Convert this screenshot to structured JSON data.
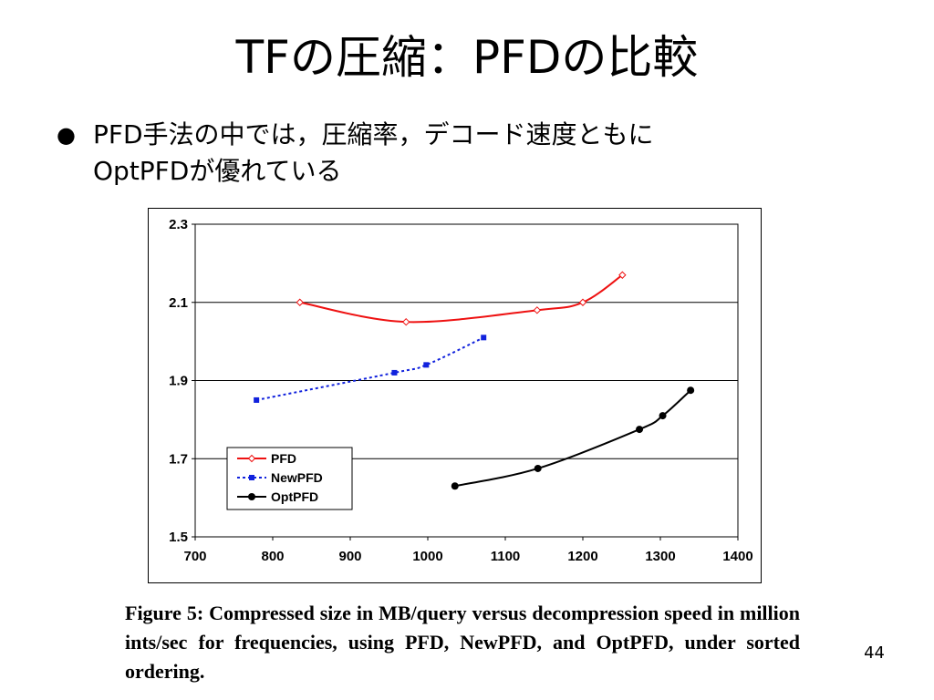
{
  "slide": {
    "title": "TFの圧縮：PFDの比較",
    "bullet_line1": "PFD手法の中では，圧縮率，デコード速度ともに",
    "bullet_line2": "OptPFDが優れている",
    "page_number": "44"
  },
  "caption": {
    "label": "Figure 5:",
    "text": "Compressed size in MB/query versus decompression speed in million ints/sec for frequencies, using PFD, NewPFD, and OptPFD, under sorted ordering."
  },
  "chart_data": {
    "type": "line",
    "title": "",
    "xlabel": "",
    "ylabel": "",
    "xlim": [
      700,
      1400
    ],
    "ylim": [
      1.5,
      2.3
    ],
    "x_ticks": [
      "700",
      "800",
      "900",
      "1000",
      "1100",
      "1200",
      "1300",
      "1400"
    ],
    "y_ticks": [
      "1.5",
      "1.7",
      "1.9",
      "2.1",
      "2.3"
    ],
    "grid": "horizontal",
    "legend_position": "bottom-left",
    "series": [
      {
        "name": "PFD",
        "color": "#ee1111",
        "marker": "open-diamond",
        "line": "solid",
        "x": [
          835,
          972,
          1141,
          1200,
          1251
        ],
        "y": [
          2.1,
          2.05,
          2.08,
          2.1,
          2.17
        ]
      },
      {
        "name": "NewPFD",
        "color": "#1122dd",
        "marker": "square",
        "line": "dotted",
        "x": [
          779,
          957,
          998,
          1072
        ],
        "y": [
          1.85,
          1.92,
          1.94,
          2.01
        ]
      },
      {
        "name": "OptPFD",
        "color": "#000000",
        "marker": "circle",
        "line": "solid",
        "x": [
          1035,
          1142,
          1273,
          1303,
          1339
        ],
        "y": [
          1.63,
          1.675,
          1.775,
          1.81,
          1.875
        ]
      }
    ]
  }
}
